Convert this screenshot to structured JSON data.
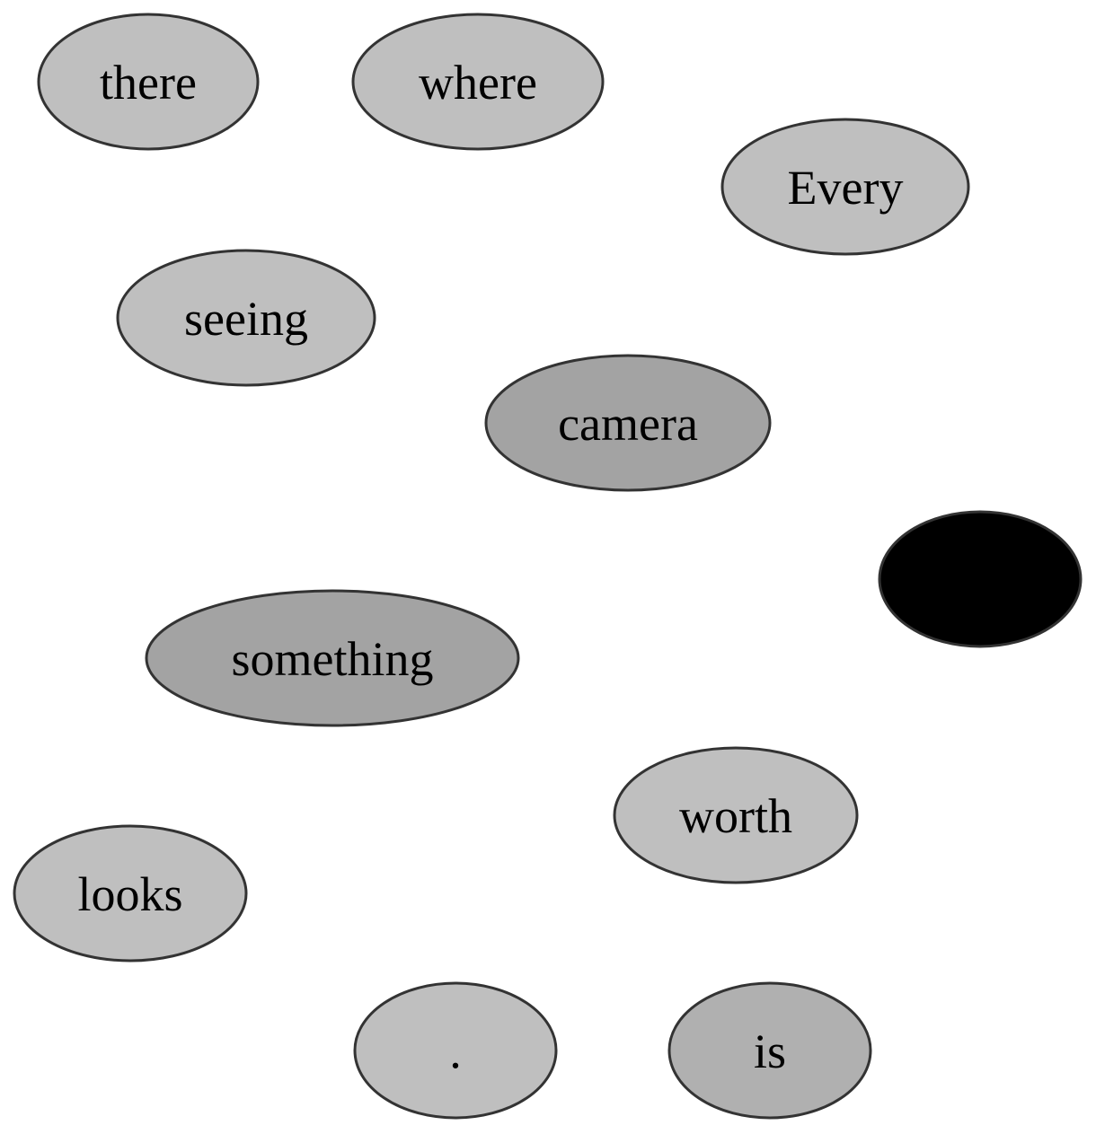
{
  "colors": {
    "light": "#bfbfbf",
    "medium": "#a3a3a3",
    "mid": "#b0b0b0",
    "dark": "#000000",
    "stroke": "#333333",
    "background": "#ffffff"
  },
  "nodes": [
    {
      "id": "there",
      "label": "there",
      "fill": "#bfbfbf"
    },
    {
      "id": "where",
      "label": "where",
      "fill": "#bfbfbf"
    },
    {
      "id": "every",
      "label": "Every",
      "fill": "#bfbfbf"
    },
    {
      "id": "seeing",
      "label": "seeing",
      "fill": "#bfbfbf"
    },
    {
      "id": "camera",
      "label": "camera",
      "fill": "#a3a3a3"
    },
    {
      "id": "blank",
      "label": "",
      "fill": "#000000"
    },
    {
      "id": "something",
      "label": "something",
      "fill": "#a3a3a3"
    },
    {
      "id": "worth",
      "label": "worth",
      "fill": "#bfbfbf"
    },
    {
      "id": "looks",
      "label": "looks",
      "fill": "#bfbfbf"
    },
    {
      "id": "period",
      "label": ".",
      "fill": "#bfbfbf"
    },
    {
      "id": "is",
      "label": "is",
      "fill": "#b0b0b0"
    }
  ]
}
